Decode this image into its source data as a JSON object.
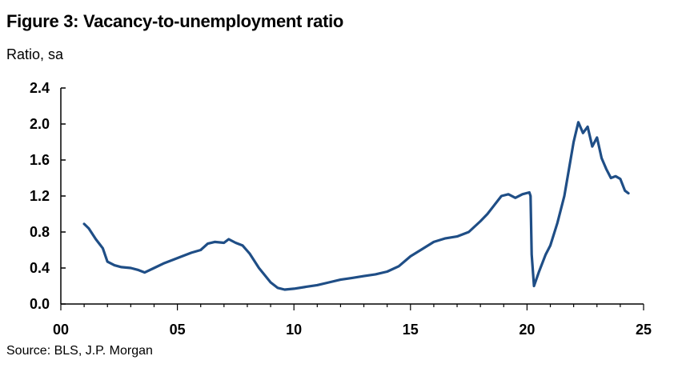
{
  "title": "Figure 3: Vacancy-to-unemployment ratio",
  "subtitle": "Ratio, sa",
  "source": "Source: BLS, J.P. Morgan",
  "colors": {
    "series": "#1f4e86",
    "axis": "#000000"
  },
  "chart_data": {
    "type": "line",
    "title": "Figure 3: Vacancy-to-unemployment ratio",
    "ylabel": "Ratio, sa",
    "xlabel": "",
    "xlim": [
      0,
      25
    ],
    "ylim": [
      0,
      2.4
    ],
    "x_ticks": [
      0,
      5,
      10,
      15,
      20,
      25
    ],
    "x_tick_labels": [
      "00",
      "05",
      "10",
      "15",
      "20",
      "25"
    ],
    "y_ticks": [
      0,
      0.4,
      0.8,
      1.2,
      1.6,
      2.0,
      2.4
    ],
    "y_tick_labels": [
      "0.0",
      "0.4",
      "0.8",
      "1.2",
      "1.6",
      "2.0",
      "2.4"
    ],
    "grid": false,
    "legend": "none",
    "series": [
      {
        "x": [
          1.0,
          1.2,
          1.5,
          1.8,
          2.0,
          2.3,
          2.6,
          3.0,
          3.3,
          3.6,
          4.0,
          4.4,
          4.8,
          5.2,
          5.6,
          6.0,
          6.3,
          6.6,
          7.0,
          7.2,
          7.5,
          7.8,
          8.1,
          8.5,
          9.0,
          9.3,
          9.6,
          10.0,
          10.5,
          11.0,
          11.5,
          12.0,
          12.5,
          13.0,
          13.5,
          14.0,
          14.5,
          15.0,
          15.5,
          16.0,
          16.5,
          17.0,
          17.5,
          18.0,
          18.3,
          18.6,
          18.9,
          19.2,
          19.5,
          19.8,
          20.1,
          20.15,
          20.2,
          20.3,
          20.5,
          20.8,
          21.0,
          21.3,
          21.6,
          21.8,
          22.0,
          22.2,
          22.4,
          22.6,
          22.8,
          23.0,
          23.2,
          23.4,
          23.6,
          23.8,
          24.0,
          24.2,
          24.35
        ],
        "y": [
          0.89,
          0.84,
          0.72,
          0.62,
          0.47,
          0.43,
          0.41,
          0.4,
          0.38,
          0.35,
          0.4,
          0.45,
          0.49,
          0.53,
          0.57,
          0.6,
          0.67,
          0.69,
          0.68,
          0.72,
          0.68,
          0.65,
          0.56,
          0.4,
          0.24,
          0.18,
          0.16,
          0.17,
          0.19,
          0.21,
          0.24,
          0.27,
          0.29,
          0.31,
          0.33,
          0.36,
          0.42,
          0.53,
          0.61,
          0.69,
          0.73,
          0.75,
          0.8,
          0.92,
          1.0,
          1.1,
          1.2,
          1.22,
          1.18,
          1.22,
          1.24,
          1.2,
          0.55,
          0.2,
          0.35,
          0.55,
          0.65,
          0.9,
          1.2,
          1.5,
          1.8,
          2.02,
          1.9,
          1.97,
          1.75,
          1.85,
          1.62,
          1.5,
          1.4,
          1.42,
          1.39,
          1.26,
          1.23
        ]
      }
    ]
  }
}
